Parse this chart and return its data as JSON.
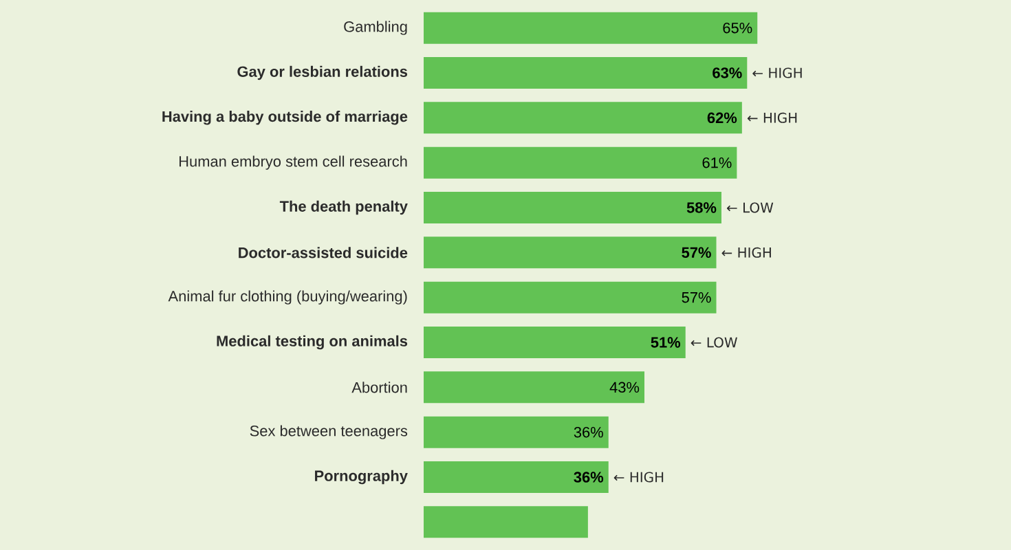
{
  "chart_data": {
    "type": "bar",
    "orientation": "horizontal",
    "color": "#62c254",
    "categories": [
      "Gambling",
      "Gay or lesbian relations",
      "Having a baby outside of marriage",
      "Human embryo stem cell research",
      "The death penalty",
      "Doctor-assisted suicide",
      "Animal fur clothing (buying/wearing)",
      "Medical testing on animals",
      "Abortion",
      "Sex between teenagers",
      "Pornography",
      null
    ],
    "values": [
      65,
      63,
      62,
      61,
      58,
      57,
      57,
      51,
      43,
      36,
      36,
      32
    ],
    "value_labels": [
      "65%",
      "63%",
      "62%",
      "61%",
      "58%",
      "57%",
      "57%",
      "51%",
      "43%",
      "36%",
      "36%",
      null
    ],
    "annotations": [
      {
        "text": "← HIGH",
        "x": 63,
        "y": "Gay or lesbian relations"
      },
      {
        "text": "← HIGH",
        "x": 62,
        "y": "Having a baby outside of marriage"
      },
      {
        "text": "← LOW",
        "x": 58,
        "y": "The death penalty"
      },
      {
        "text": "← HIGH",
        "x": 57,
        "y": "Doctor-assisted suicide"
      },
      {
        "text": "← LOW",
        "x": 51,
        "y": "Medical testing on animals"
      },
      {
        "text": "← HIGH",
        "x": 36,
        "y": "Pornography"
      }
    ]
  }
}
